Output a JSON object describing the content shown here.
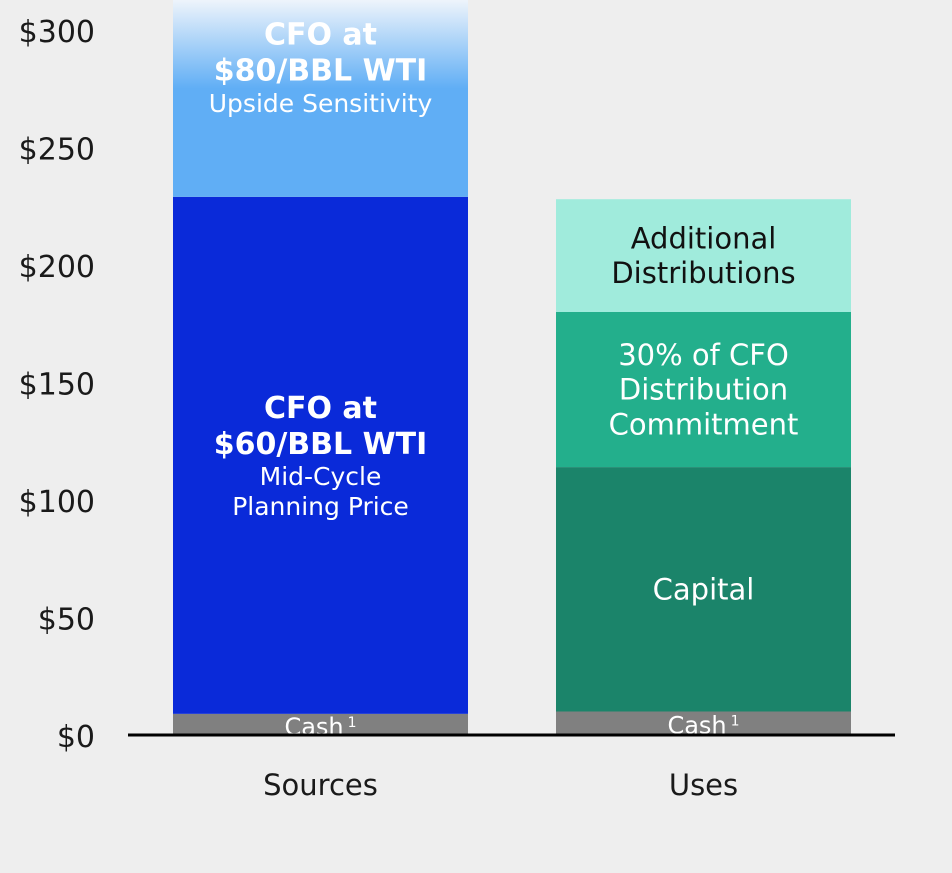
{
  "chart_data": {
    "type": "bar",
    "stacked": true,
    "categories": [
      "Sources",
      "Uses"
    ],
    "ylim": [
      0,
      310
    ],
    "yticks": [
      0,
      50,
      100,
      150,
      200,
      250,
      300
    ],
    "ytick_labels": [
      "$0",
      "$50",
      "$100",
      "$150",
      "$200",
      "$250",
      "$300"
    ],
    "grid": false,
    "legend": "none",
    "bars": [
      {
        "category": "Sources",
        "segments": [
          {
            "key": "cash",
            "label_lines": [
              {
                "text": "Cash",
                "sup": "1",
                "bold": false
              }
            ],
            "start": 0,
            "end": 9,
            "color": "#808080",
            "text_color": "#ffffff"
          },
          {
            "key": "cfo-60",
            "label_lines": [
              {
                "text": "CFO at",
                "bold": true
              },
              {
                "text": "$60/BBL WTI",
                "bold": true
              },
              {
                "text": "Mid-Cycle",
                "bold": false
              },
              {
                "text": "Planning Price",
                "bold": false
              }
            ],
            "start": 9,
            "end": 229,
            "color": "#0a2ad9",
            "text_color": "#ffffff"
          },
          {
            "key": "cfo-80",
            "label_lines": [
              {
                "text": "CFO at",
                "bold": true
              },
              {
                "text": "$80/BBL WTI",
                "bold": true
              },
              {
                "text": "Upside Sensitivity",
                "bold": false
              }
            ],
            "start": 229,
            "end": 313,
            "color": "#60aef5",
            "gradient_top": "#eef4fb",
            "text_color": "#ffffff"
          }
        ]
      },
      {
        "category": "Uses",
        "segments": [
          {
            "key": "cash",
            "label_lines": [
              {
                "text": "Cash",
                "sup": "1",
                "bold": false
              }
            ],
            "start": 0,
            "end": 10,
            "color": "#808080",
            "text_color": "#ffffff"
          },
          {
            "key": "capital",
            "label_lines": [
              {
                "text": "Capital",
                "bold": false
              }
            ],
            "start": 10,
            "end": 114,
            "color": "#1b846a",
            "text_color": "#ffffff"
          },
          {
            "key": "distribution-commitment",
            "label_lines": [
              {
                "text": "30% of CFO",
                "bold": false
              },
              {
                "text": "Distribution",
                "bold": false
              },
              {
                "text": "Commitment",
                "bold": false
              }
            ],
            "start": 114,
            "end": 180,
            "color": "#23af8c",
            "text_color": "#ffffff"
          },
          {
            "key": "additional-distributions",
            "label_lines": [
              {
                "text": "Additional",
                "bold": false
              },
              {
                "text": "Distributions",
                "bold": false
              }
            ],
            "start": 180,
            "end": 228,
            "color": "#a0ebdc",
            "text_color": "#111111"
          }
        ]
      }
    ]
  }
}
